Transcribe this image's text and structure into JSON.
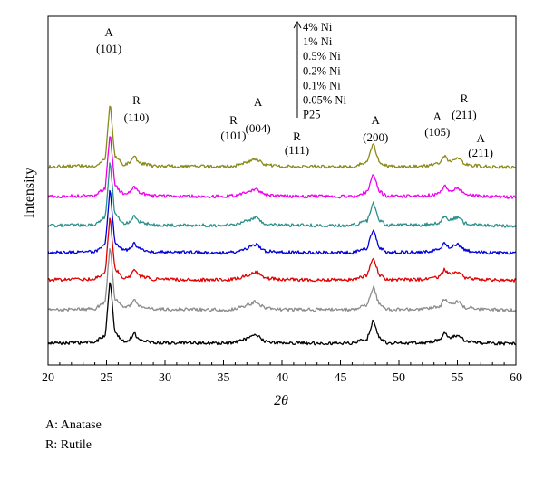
{
  "chart_data": {
    "type": "line",
    "xlabel": "2θ",
    "ylabel": "Intensity",
    "xlim": [
      20,
      60
    ],
    "xticks": [
      20,
      25,
      30,
      35,
      40,
      45,
      50,
      55,
      60
    ],
    "y_axis_numbered": false,
    "offset_stacked": true,
    "legend": {
      "arrow": "up",
      "placement": "top",
      "entries": [
        "4% Ni",
        "1% Ni",
        "0.5% Ni",
        "0.2% Ni",
        "0.1% Ni",
        "0.05% Ni",
        "P25"
      ]
    },
    "series": [
      {
        "name": "P25",
        "color": "#000000",
        "x": [
          20,
          24,
          24.9,
          25.3,
          25.7,
          26.5,
          27,
          27.4,
          27.8,
          29,
          35,
          36,
          37.2,
          37.8,
          38.5,
          40,
          46,
          47.3,
          47.8,
          48.3,
          49,
          52,
          53.5,
          53.9,
          54.3,
          54.7,
          55.1,
          55.6,
          57,
          60
        ],
        "y": [
          12,
          15,
          40,
          230,
          50,
          17,
          26,
          44,
          25,
          14,
          12,
          15,
          30,
          40,
          18,
          13,
          12,
          28,
          90,
          30,
          13,
          13,
          22,
          48,
          30,
          36,
          40,
          20,
          13,
          10
        ]
      },
      {
        "name": "0.05% Ni",
        "color": "#8c8c8c",
        "x": [
          20,
          24,
          24.9,
          25.3,
          25.7,
          26.5,
          27,
          27.4,
          27.8,
          29,
          35,
          36,
          37.2,
          37.8,
          38.5,
          40,
          46,
          47.3,
          47.8,
          48.3,
          49,
          52,
          53.5,
          53.9,
          54.3,
          54.7,
          55.1,
          55.6,
          57,
          60
        ],
        "y": [
          12,
          15,
          40,
          230,
          50,
          17,
          26,
          44,
          25,
          14,
          12,
          15,
          30,
          40,
          18,
          13,
          12,
          28,
          90,
          30,
          13,
          13,
          22,
          48,
          30,
          36,
          40,
          20,
          13,
          10
        ]
      },
      {
        "name": "0.1% Ni",
        "color": "#e00000",
        "x": [
          20,
          24,
          24.9,
          25.3,
          25.7,
          26.5,
          27,
          27.4,
          27.8,
          29,
          35,
          36,
          37.2,
          37.8,
          38.5,
          40,
          46,
          47.3,
          47.8,
          48.3,
          49,
          52,
          53.5,
          53.9,
          54.3,
          54.7,
          55.1,
          55.6,
          57,
          60
        ],
        "y": [
          12,
          15,
          40,
          230,
          50,
          17,
          26,
          44,
          25,
          14,
          12,
          15,
          30,
          40,
          18,
          13,
          12,
          28,
          90,
          30,
          13,
          13,
          22,
          48,
          30,
          36,
          40,
          20,
          13,
          10
        ]
      },
      {
        "name": "0.2% Ni",
        "color": "#0000dd",
        "x": [
          20,
          24,
          24.9,
          25.3,
          25.7,
          26.5,
          27,
          27.4,
          27.8,
          29,
          35,
          36,
          37.2,
          37.8,
          38.5,
          40,
          46,
          47.3,
          47.8,
          48.3,
          49,
          52,
          53.5,
          53.9,
          54.3,
          54.7,
          55.1,
          55.6,
          57,
          60
        ],
        "y": [
          12,
          15,
          40,
          230,
          50,
          17,
          26,
          44,
          25,
          14,
          12,
          15,
          30,
          40,
          18,
          13,
          12,
          28,
          90,
          30,
          13,
          13,
          22,
          48,
          30,
          36,
          40,
          20,
          13,
          10
        ]
      },
      {
        "name": "0.5% Ni",
        "color": "#2b8f8a",
        "x": [
          20,
          24,
          24.9,
          25.3,
          25.7,
          26.5,
          27,
          27.4,
          27.8,
          29,
          35,
          36,
          37.2,
          37.8,
          38.5,
          40,
          46,
          47.3,
          47.8,
          48.3,
          49,
          52,
          53.5,
          53.9,
          54.3,
          54.7,
          55.1,
          55.6,
          57,
          60
        ],
        "y": [
          12,
          15,
          40,
          230,
          50,
          17,
          26,
          44,
          25,
          14,
          12,
          15,
          30,
          40,
          18,
          13,
          12,
          28,
          90,
          30,
          13,
          13,
          22,
          48,
          30,
          36,
          40,
          20,
          13,
          10
        ]
      },
      {
        "name": "1% Ni",
        "color": "#ee00ee",
        "x": [
          20,
          24,
          24.9,
          25.3,
          25.7,
          26.5,
          27,
          27.4,
          27.8,
          29,
          35,
          36,
          37.2,
          37.8,
          38.5,
          40,
          46,
          47.3,
          47.8,
          48.3,
          49,
          52,
          53.5,
          53.9,
          54.3,
          54.7,
          55.1,
          55.6,
          57,
          60
        ],
        "y": [
          12,
          15,
          40,
          230,
          50,
          17,
          26,
          44,
          25,
          14,
          12,
          15,
          30,
          40,
          18,
          13,
          12,
          28,
          90,
          30,
          13,
          13,
          22,
          48,
          30,
          36,
          40,
          20,
          13,
          10
        ]
      },
      {
        "name": "4% Ni",
        "color": "#8a8a1a",
        "x": [
          20,
          24,
          24.9,
          25.3,
          25.7,
          26.5,
          27,
          27.4,
          27.8,
          29,
          35,
          36,
          37.2,
          37.8,
          38.5,
          40,
          46,
          47.3,
          47.8,
          48.3,
          49,
          52,
          53.5,
          53.9,
          54.3,
          54.7,
          55.1,
          55.6,
          57,
          60
        ],
        "y": [
          12,
          15,
          40,
          230,
          50,
          17,
          26,
          44,
          25,
          14,
          12,
          15,
          30,
          40,
          18,
          13,
          12,
          28,
          90,
          30,
          13,
          13,
          22,
          48,
          30,
          36,
          40,
          20,
          13,
          10
        ]
      }
    ],
    "annotations": [
      {
        "phase": "A",
        "hkl": "(101)",
        "x": 25.2
      },
      {
        "phase": "R",
        "hkl": "(110)",
        "x": 27.4
      },
      {
        "phase": "R",
        "hkl": "(101)",
        "x": 36.0
      },
      {
        "phase": "A",
        "hkl": "(004)",
        "x": 37.8
      },
      {
        "phase": "R",
        "hkl": "(111)",
        "x": 41.2
      },
      {
        "phase": "A",
        "hkl": "(200)",
        "x": 48.0
      },
      {
        "phase": "A",
        "hkl": "(105)",
        "x": 53.9
      },
      {
        "phase": "R",
        "hkl": "(211)",
        "x": 54.8
      },
      {
        "phase": "A",
        "hkl": "(211)",
        "x": 56.6
      }
    ]
  },
  "footnotes": [
    "A: Anatase",
    "R: Rutile"
  ]
}
